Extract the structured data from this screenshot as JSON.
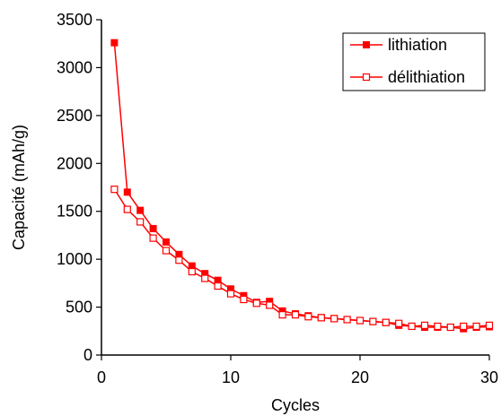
{
  "chart_data": {
    "type": "line",
    "title": "",
    "xlabel": "Cycles",
    "ylabel": "Capacité (mAh/g)",
    "xlim": [
      0,
      30
    ],
    "ylim": [
      0,
      3500
    ],
    "xticks": [
      0,
      10,
      20,
      30
    ],
    "yticks": [
      0,
      500,
      1000,
      1500,
      2000,
      2500,
      3000,
      3500
    ],
    "grid": false,
    "legend_position": "top-right",
    "x": [
      1,
      2,
      3,
      4,
      5,
      6,
      7,
      8,
      9,
      10,
      11,
      12,
      13,
      14,
      15,
      16,
      17,
      18,
      19,
      20,
      21,
      22,
      23,
      24,
      25,
      26,
      27,
      28,
      29,
      30
    ],
    "series": [
      {
        "name": "lithiation",
        "marker": "filled-square",
        "color": "#ff0000",
        "values": [
          3260,
          1700,
          1510,
          1320,
          1180,
          1050,
          930,
          850,
          780,
          690,
          620,
          550,
          560,
          460,
          430,
          410,
          390,
          380,
          370,
          360,
          350,
          340,
          310,
          300,
          290,
          290,
          290,
          275,
          290,
          295
        ]
      },
      {
        "name": "délithiation",
        "marker": "open-square",
        "color": "#ff0000",
        "values": [
          1730,
          1520,
          1390,
          1220,
          1090,
          990,
          870,
          800,
          720,
          640,
          580,
          540,
          520,
          420,
          420,
          400,
          390,
          380,
          370,
          360,
          350,
          340,
          330,
          300,
          310,
          300,
          290,
          300,
          300,
          310
        ]
      }
    ]
  }
}
